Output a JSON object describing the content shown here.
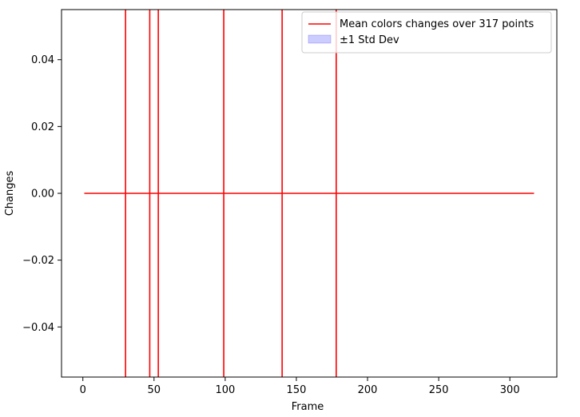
{
  "chart_data": {
    "type": "line",
    "xlabel": "Frame",
    "ylabel": "Changes",
    "xlim": [
      -15,
      333
    ],
    "ylim": [
      -0.055,
      0.055
    ],
    "xticks": [
      0,
      50,
      100,
      150,
      200,
      250,
      300
    ],
    "yticks": [
      -0.04,
      -0.02,
      0.0,
      0.02,
      0.04
    ],
    "x_tick_labels": [
      "0",
      "50",
      "100",
      "150",
      "200",
      "250",
      "300"
    ],
    "y_tick_labels": [
      "−0.04",
      "−0.02",
      "0.00",
      "0.02",
      "0.04"
    ],
    "grid": false,
    "legend_position": "upper right",
    "series": [
      {
        "name": "Mean colors changes over 317 points",
        "color": "#ff0000",
        "x": [
          1,
          317
        ],
        "y": [
          0.0,
          0.0
        ],
        "spike_frames": [
          30,
          47,
          53,
          99,
          140,
          178
        ]
      },
      {
        "name": "±1 Std Dev",
        "color": "#0000ff",
        "fill_alpha": 0.2
      }
    ]
  }
}
